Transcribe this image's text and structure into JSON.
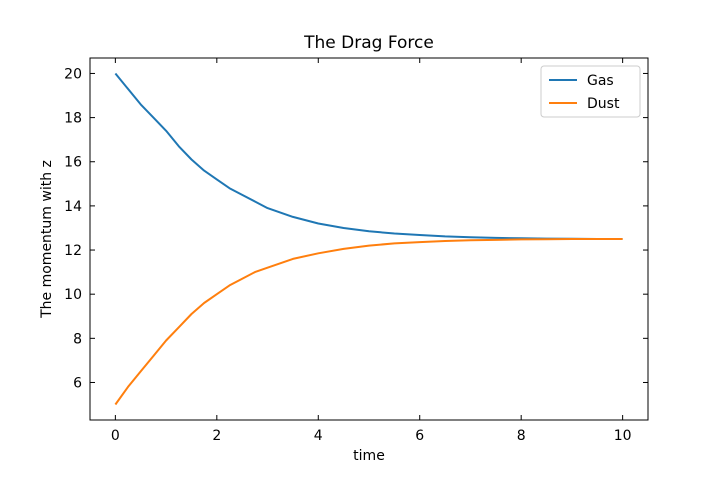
{
  "chart_data": {
    "type": "line",
    "title": "The Drag Force",
    "xlabel": "time",
    "ylabel": "The momentum with z",
    "xlim": [
      -0.5,
      10.5
    ],
    "ylim": [
      4.3,
      20.7
    ],
    "xticks": [
      0,
      2,
      4,
      6,
      8,
      10
    ],
    "yticks": [
      6,
      8,
      10,
      12,
      14,
      16,
      18,
      20
    ],
    "grid": false,
    "legend_position": "top-right",
    "x": [
      0,
      0.25,
      0.5,
      0.75,
      1,
      1.25,
      1.5,
      1.75,
      2,
      2.25,
      2.5,
      2.75,
      3,
      3.5,
      4,
      4.5,
      5,
      5.5,
      6,
      6.5,
      7,
      7.5,
      8,
      8.5,
      9,
      9.5,
      10
    ],
    "series": [
      {
        "name": "Gas",
        "color": "#1f77b4",
        "values": [
          20.0,
          19.3,
          18.6,
          18.0,
          17.4,
          16.7,
          16.1,
          15.6,
          15.2,
          14.8,
          14.5,
          14.2,
          13.9,
          13.5,
          13.2,
          13.0,
          12.85,
          12.75,
          12.68,
          12.62,
          12.58,
          12.55,
          12.53,
          12.52,
          12.51,
          12.5,
          12.5
        ]
      },
      {
        "name": "Dust",
        "color": "#ff7f0e",
        "values": [
          5.0,
          5.8,
          6.5,
          7.2,
          7.9,
          8.5,
          9.1,
          9.6,
          10.0,
          10.4,
          10.7,
          11.0,
          11.2,
          11.6,
          11.85,
          12.05,
          12.2,
          12.3,
          12.36,
          12.41,
          12.44,
          12.46,
          12.48,
          12.49,
          12.5,
          12.5,
          12.5
        ]
      }
    ]
  }
}
